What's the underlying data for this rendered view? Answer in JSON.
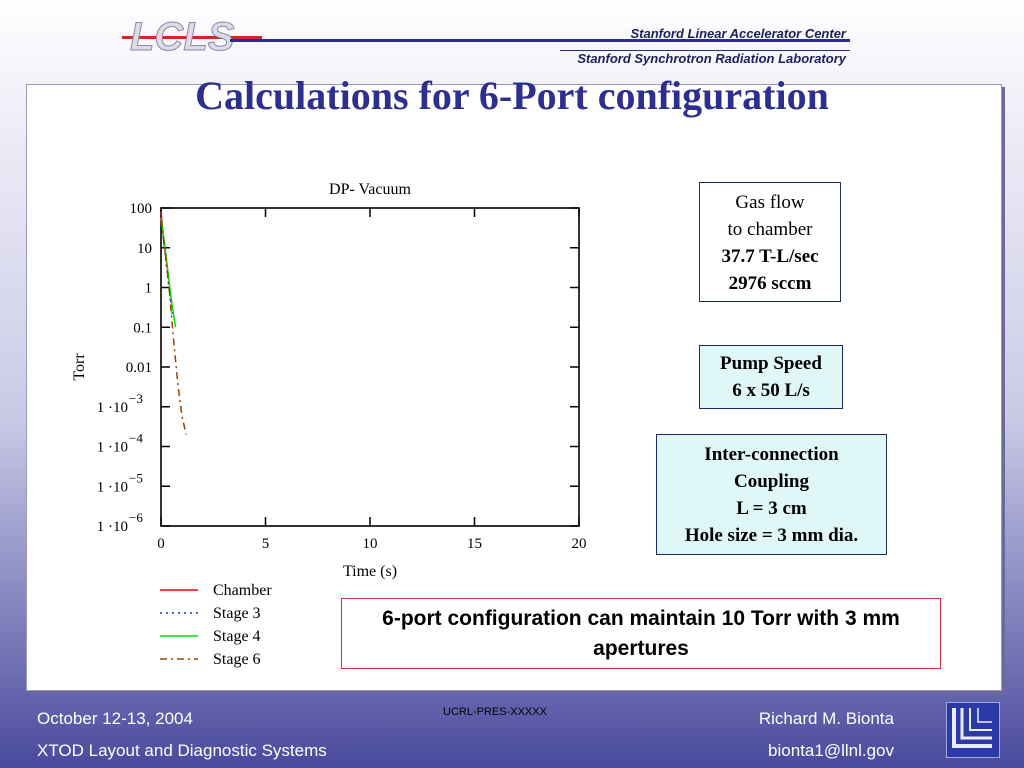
{
  "header": {
    "logo_text": "LCLS",
    "org_line1": "Stanford Linear Accelerator Center",
    "org_line2": "Stanford Synchrotron Radiation Laboratory"
  },
  "title": "Calculations for 6-Port configuration",
  "chart_data": {
    "type": "line",
    "title": "DP- Vacuum",
    "xlabel": "Time (s)",
    "ylabel": "Torr",
    "xlim": [
      0,
      20
    ],
    "ylim": [
      1e-06,
      100
    ],
    "yscale": "log",
    "x_ticks": [
      "0",
      "5",
      "10",
      "15",
      "20"
    ],
    "y_ticks": [
      {
        "value": 100,
        "label": "100"
      },
      {
        "value": 10,
        "label": "10"
      },
      {
        "value": 1,
        "label": "1"
      },
      {
        "value": 0.1,
        "label": "0.1"
      },
      {
        "value": 0.01,
        "label": "0.01"
      },
      {
        "value": 0.001,
        "label": "1 ·10",
        "exp": "−3"
      },
      {
        "value": 0.0001,
        "label": "1 ·10",
        "exp": "−4"
      },
      {
        "value": 1e-05,
        "label": "1 ·10",
        "exp": "−5"
      },
      {
        "value": 1e-06,
        "label": "1 ·10",
        "exp": "−6"
      }
    ],
    "series": [
      {
        "name": "Chamber",
        "color": "#ff0000",
        "dash": "solid",
        "x": [
          0.0,
          0.05,
          0.15,
          0.25,
          0.35
        ],
        "y": [
          80,
          45,
          12,
          5,
          2
        ]
      },
      {
        "name": "Stage 3",
        "color": "#1a2fd6",
        "dash": "dotted",
        "x": [
          0.0,
          0.1,
          0.25,
          0.4,
          0.55
        ],
        "y": [
          60,
          20,
          4,
          0.8,
          0.2
        ]
      },
      {
        "name": "Stage 4",
        "color": "#00dd00",
        "dash": "solid",
        "x": [
          0.0,
          0.1,
          0.25,
          0.4,
          0.55,
          0.7
        ],
        "y": [
          55,
          25,
          6,
          1.2,
          0.3,
          0.1
        ]
      },
      {
        "name": "Stage 6",
        "color": "#994400",
        "dash": "dashdot",
        "x": [
          0.0,
          0.2,
          0.4,
          0.6,
          0.8,
          1.0,
          1.2
        ],
        "y": [
          50,
          8,
          0.8,
          0.05,
          0.004,
          0.0006,
          0.0002
        ]
      }
    ],
    "legend_position": "below"
  },
  "gas_flow": {
    "line1": "Gas flow",
    "line2": "to chamber",
    "line3": "37.7 T-L/sec",
    "line4": "2976  sccm"
  },
  "pump_speed": {
    "line1": "Pump Speed",
    "line2": "6 x 50 L/s"
  },
  "interconnection": {
    "line1": "Inter-connection",
    "line2": "Coupling",
    "line3": "L = 3 cm",
    "line4": "Hole size = 3 mm dia."
  },
  "conclusion": "6-port configuration can maintain 10 Torr with 3 mm apertures",
  "footer": {
    "date": "October 12-13, 2004",
    "project": "XTOD Layout and Diagnostic Systems",
    "code": "UCRL-PRES-XXXXX",
    "name": "Richard M. Bionta",
    "email": "bionta1@llnl.gov"
  }
}
